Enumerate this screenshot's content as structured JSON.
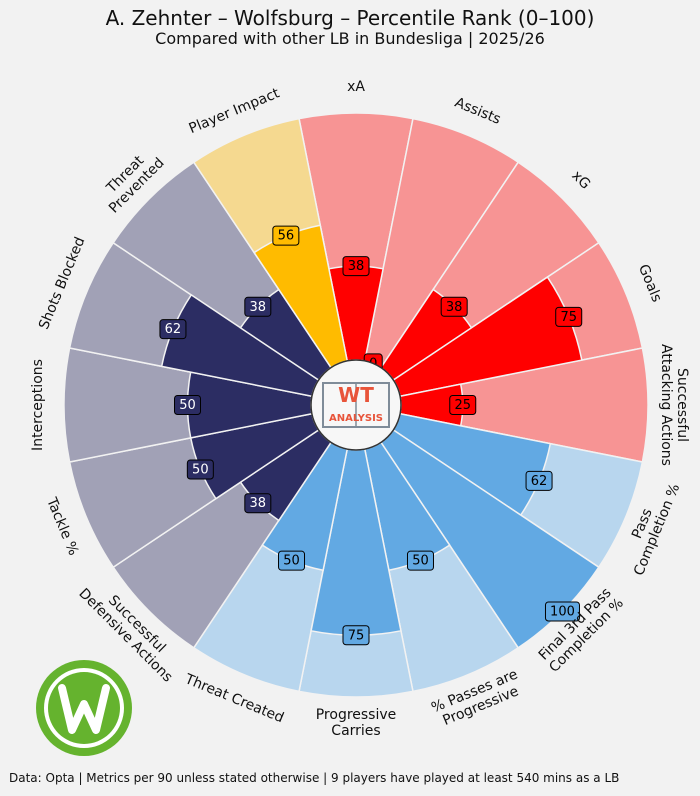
{
  "chart_data": {
    "type": "polar-bar",
    "title": "A. Zehnter – Wolfsburg – Percentile Rank (0–100)",
    "subtitle": "Compared with other LB in Bundesliga | 2025/26",
    "footer": "Data: Opta | Metrics per 90 unless stated otherwise | 9 players have played at least 540 mins as a LB",
    "badge_text_top": "WT",
    "badge_text_bottom": "ANALYSIS",
    "range": [
      0,
      100
    ],
    "metrics": [
      {
        "label": "xA",
        "value": 38,
        "group": "attacking"
      },
      {
        "label": "Assists",
        "value": 0,
        "group": "attacking"
      },
      {
        "label": "xG",
        "value": 38,
        "group": "attacking"
      },
      {
        "label": "Goals",
        "value": 75,
        "group": "attacking"
      },
      {
        "label": "Successful Attacking Actions",
        "value": 25,
        "group": "attacking"
      },
      {
        "label": "Pass Completion %",
        "value": 62,
        "group": "possession"
      },
      {
        "label": "Final 3rd Pass Completion %",
        "value": 100,
        "group": "possession"
      },
      {
        "label": "% Passes are Progressive",
        "value": 50,
        "group": "possession"
      },
      {
        "label": "Progressive Carries",
        "value": 75,
        "group": "possession"
      },
      {
        "label": "Threat Created",
        "value": 50,
        "group": "possession"
      },
      {
        "label": "Successful Defensive Actions",
        "value": 38,
        "group": "defending"
      },
      {
        "label": "Tackle %",
        "value": 50,
        "group": "defending"
      },
      {
        "label": "Interceptions",
        "value": 50,
        "group": "defending"
      },
      {
        "label": "Shots Blocked",
        "value": 62,
        "group": "defending"
      },
      {
        "label": "Threat Prevented",
        "value": 38,
        "group": "defending"
      },
      {
        "label": "Player Impact",
        "value": 56,
        "group": "impact"
      }
    ],
    "group_colors": {
      "attacking": {
        "bg": "#f79494",
        "fg": "#ff0000",
        "text": "#000000"
      },
      "possession": {
        "bg": "#b8d6ee",
        "fg": "#62a9e3",
        "text": "#000000"
      },
      "defending": {
        "bg": "#a1a1b6",
        "fg": "#2c2d63",
        "text": "#ffffff"
      },
      "impact": {
        "bg": "#f5d990",
        "fg": "#ffbb00",
        "text": "#000000"
      }
    },
    "grid": false
  }
}
